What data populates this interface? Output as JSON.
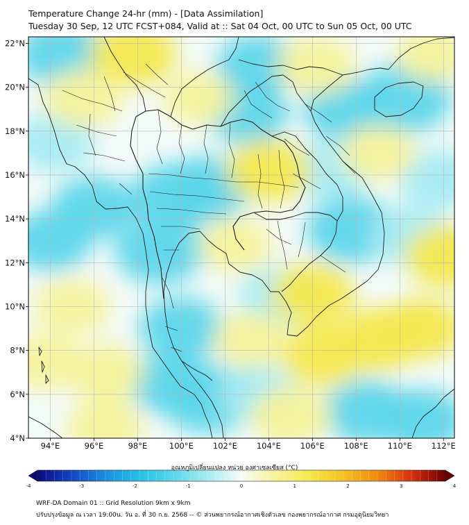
{
  "title_line1": "Temperature Change 24-hr (mm) - [Data Assimilation]",
  "title_line2": "Tuesday 30 Sep, 12 UTC FCST+084, Valid at :: Sat 04 Oct, 00 UTC to Sun 05 Oct, 00 UTC",
  "chart_data": {
    "type": "heatmap",
    "title": "Temperature Change 24-hr (mm) - [Data Assimilation]",
    "subtitle": "Tuesday 30 Sep, 12 UTC FCST+084, Valid at :: Sat 04 Oct, 00 UTC to Sun 05 Oct, 00 UTC",
    "xlim": [
      93,
      112.5
    ],
    "ylim": [
      4,
      22.3
    ],
    "x_ticks": [
      94,
      96,
      98,
      100,
      102,
      104,
      106,
      108,
      110,
      112
    ],
    "x_tick_labels": [
      "94°E",
      "96°E",
      "98°E",
      "100°E",
      "102°E",
      "104°E",
      "106°E",
      "108°E",
      "110°E",
      "112°E"
    ],
    "y_ticks": [
      4,
      6,
      8,
      10,
      12,
      14,
      16,
      18,
      20,
      22
    ],
    "y_tick_labels": [
      "4°N",
      "6°N",
      "8°N",
      "10°N",
      "12°N",
      "14°N",
      "16°N",
      "18°N",
      "20°N",
      "22°N"
    ],
    "grid": true,
    "colorbar": {
      "title": "อุณหภูมิเปลี่ยนแปลง หน่วย องศาเซลเซียส (°C)",
      "range": [
        -4,
        4
      ],
      "ticks": [
        -4,
        -3,
        -2,
        -1,
        0,
        1,
        2,
        3,
        4
      ],
      "tick_labels": [
        "-4",
        "-3",
        "-2",
        "-1",
        "0",
        "1",
        "2",
        "3",
        "4"
      ]
    },
    "blobs": [
      {
        "lon": 99.8,
        "lat": 15.0,
        "value": -1.5
      },
      {
        "lon": 101.2,
        "lat": 15.4,
        "value": -1.2
      },
      {
        "lon": 99.0,
        "lat": 12.5,
        "value": -1.3
      },
      {
        "lon": 100.0,
        "lat": 9.0,
        "value": -1.1
      },
      {
        "lon": 101.2,
        "lat": 5.8,
        "value": -1.6
      },
      {
        "lon": 99.5,
        "lat": 6.5,
        "value": -1.0
      },
      {
        "lon": 96.0,
        "lat": 14.5,
        "value": -1.1
      },
      {
        "lon": 94.5,
        "lat": 21.5,
        "value": -1.2
      },
      {
        "lon": 94.2,
        "lat": 17.5,
        "value": -0.9
      },
      {
        "lon": 94.0,
        "lat": 13.0,
        "value": -1.0
      },
      {
        "lon": 103.0,
        "lat": 18.8,
        "value": -1.0
      },
      {
        "lon": 103.5,
        "lat": 21.0,
        "value": -1.0
      },
      {
        "lon": 107.5,
        "lat": 19.0,
        "value": -1.1
      },
      {
        "lon": 107.8,
        "lat": 13.5,
        "value": -1.4
      },
      {
        "lon": 106.8,
        "lat": 16.2,
        "value": -0.9
      },
      {
        "lon": 110.2,
        "lat": 19.5,
        "value": -1.6
      },
      {
        "lon": 110.5,
        "lat": 13.2,
        "value": -0.9
      },
      {
        "lon": 111.8,
        "lat": 15.8,
        "value": -0.9
      },
      {
        "lon": 108.5,
        "lat": 5.2,
        "value": -1.2
      },
      {
        "lon": 111.0,
        "lat": 4.8,
        "value": -1.2
      },
      {
        "lon": 104.5,
        "lat": 10.5,
        "value": -0.9
      },
      {
        "lon": 103.5,
        "lat": 6.0,
        "value": -0.8
      },
      {
        "lon": 97.8,
        "lat": 21.5,
        "value": 1.2
      },
      {
        "lon": 95.5,
        "lat": 19.5,
        "value": 0.8
      },
      {
        "lon": 104.0,
        "lat": 16.2,
        "value": 1.1
      },
      {
        "lon": 106.0,
        "lat": 10.6,
        "value": 1.0
      },
      {
        "lon": 106.5,
        "lat": 7.8,
        "value": 1.1
      },
      {
        "lon": 109.0,
        "lat": 8.5,
        "value": 1.2
      },
      {
        "lon": 111.0,
        "lat": 9.0,
        "value": 1.0
      },
      {
        "lon": 112.2,
        "lat": 12.3,
        "value": 1.2
      },
      {
        "lon": 106.2,
        "lat": 21.0,
        "value": 0.8
      },
      {
        "lon": 95.0,
        "lat": 10.0,
        "value": 0.6
      },
      {
        "lon": 96.5,
        "lat": 4.5,
        "value": 0.7
      },
      {
        "lon": 105.0,
        "lat": 5.0,
        "value": 0.9
      },
      {
        "lon": 96.5,
        "lat": 7.0,
        "value": 0.7
      },
      {
        "lon": 93.8,
        "lat": 7.5,
        "value": 0.6
      },
      {
        "lon": 102.5,
        "lat": 12.8,
        "value": 0.5
      },
      {
        "lon": 103.2,
        "lat": 8.5,
        "value": 0.6
      },
      {
        "lon": 109.0,
        "lat": 17.0,
        "value": 0.6
      },
      {
        "lon": 111.5,
        "lat": 21.5,
        "value": 0.5
      },
      {
        "lon": 100.8,
        "lat": 19.5,
        "value": 0.4
      }
    ]
  },
  "footer_line1": "WRF-DA Domain 01 :: Grid Resolution 9km x 9km",
  "footer_line2": "ปรับปรุงข้อมูล ณ เวลา 19:00น. วัน อ. ที่ 30 ก.ย. 2568 -- © ส่วนพยากรณ์อากาศเชิงตัวเลข กองพยากรณ์อากาศ กรมอุตุนิยมวิทยา"
}
